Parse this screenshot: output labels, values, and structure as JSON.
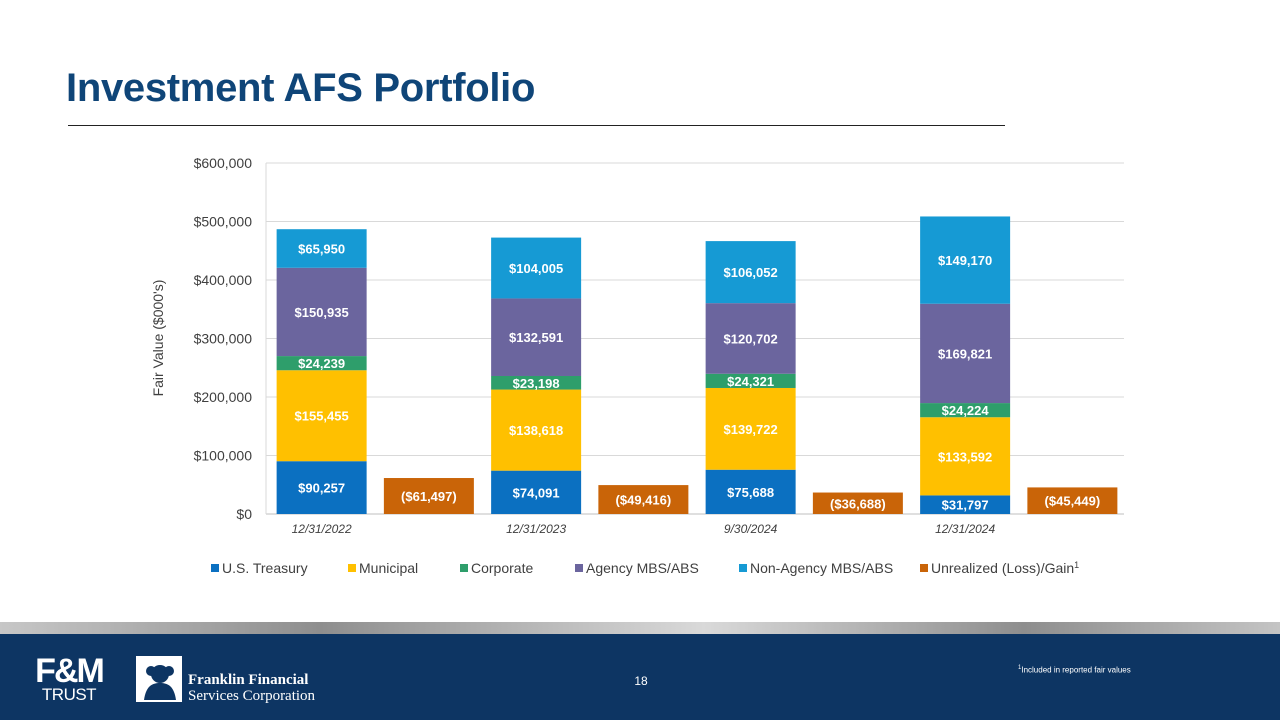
{
  "page": {
    "title": "Investment AFS Portfolio"
  },
  "chart_data": {
    "type": "bar",
    "stacked": true,
    "ylabel": "Fair Value ($000's)",
    "ylim": [
      0,
      600000
    ],
    "yticks": [
      0,
      100000,
      200000,
      300000,
      400000,
      500000,
      600000
    ],
    "ytick_labels": [
      "$0",
      "$100,000",
      "$200,000",
      "$300,000",
      "$400,000",
      "$500,000",
      "$600,000"
    ],
    "categories": [
      "12/31/2022",
      "12/31/2023",
      "9/30/2024",
      "12/31/2024"
    ],
    "series": [
      {
        "name": "U.S. Treasury",
        "color": "#0b70c1",
        "values": [
          90257,
          74091,
          75688,
          31797
        ],
        "labels": [
          "$90,257",
          "$74,091",
          "$75,688",
          "$31,797"
        ]
      },
      {
        "name": "Municipal",
        "color": "#ffc000",
        "values": [
          155455,
          138618,
          139722,
          133592
        ],
        "labels": [
          "$155,455",
          "$138,618",
          "$139,722",
          "$133,592"
        ]
      },
      {
        "name": "Corporate",
        "color": "#2e9e6b",
        "values": [
          24239,
          23198,
          24321,
          24224
        ],
        "labels": [
          "$24,239",
          "$23,198",
          "$24,321",
          "$24,224"
        ]
      },
      {
        "name": "Agency MBS/ABS",
        "color": "#6b659e",
        "values": [
          150935,
          132591,
          120702,
          169821
        ],
        "labels": [
          "$150,935",
          "$132,591",
          "$120,702",
          "$169,821"
        ]
      },
      {
        "name": "Non-Agency MBS/ABS",
        "color": "#169ad4",
        "values": [
          65950,
          104005,
          106052,
          149170
        ],
        "labels": [
          "$65,950",
          "$104,005",
          "$106,052",
          "$149,170"
        ]
      }
    ],
    "unrealized": {
      "name": "Unrealized (Loss)/Gain",
      "superscript": "1",
      "color": "#c96408",
      "values": [
        -61497,
        -49416,
        -36688,
        -45449
      ],
      "labels": [
        "($61,497)",
        "($49,416)",
        "($36,688)",
        "($45,449)"
      ]
    },
    "legend_position": "bottom"
  },
  "footer": {
    "logo_fm": "F&M",
    "logo_trust": "TRUST",
    "company_line1": "Franklin Financial",
    "company_line2": "Services Corporation",
    "page_number": "18",
    "footnote_sup": "1",
    "footnote_text": "Included in reported fair values"
  }
}
